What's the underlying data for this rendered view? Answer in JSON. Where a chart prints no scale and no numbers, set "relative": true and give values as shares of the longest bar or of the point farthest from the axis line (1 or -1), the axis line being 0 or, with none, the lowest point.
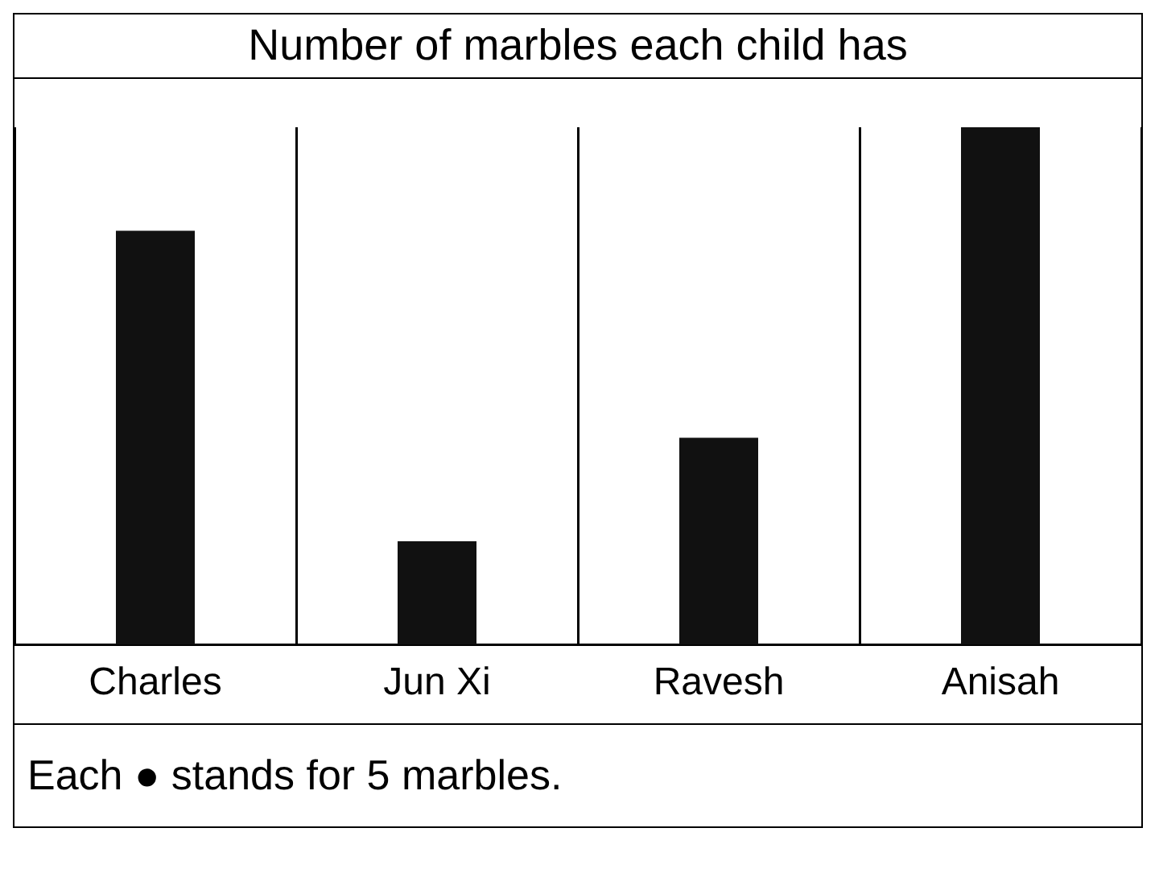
{
  "chart_data": {
    "type": "bar",
    "title": "Number of marbles each child has",
    "categories": [
      "Charles",
      "Jun Xi",
      "Ravesh",
      "Anisah"
    ],
    "values": [
      0.8,
      0.2,
      0.4,
      1
    ],
    "color": "#111111",
    "relative": true,
    "grid": "x",
    "annotations": [
      "Each ● stands for 5 marbles."
    ]
  }
}
